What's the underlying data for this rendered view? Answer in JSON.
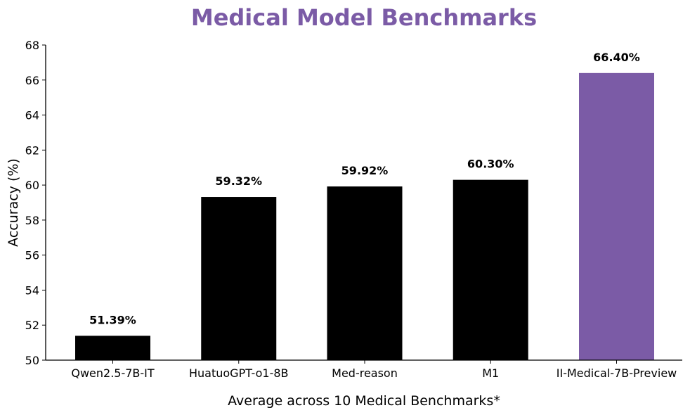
{
  "chart_data": {
    "type": "bar",
    "title": "Medical Model Benchmarks",
    "xlabel": "Average across 10 Medical Benchmarks*",
    "ylabel": "Accuracy (%)",
    "categories": [
      "Qwen2.5-7B-IT",
      "HuatuoGPT-o1-8B",
      "Med-reason",
      "M1",
      "II-Medical-7B-Preview"
    ],
    "values": [
      51.39,
      59.32,
      59.92,
      60.3,
      66.4
    ],
    "data_labels": [
      "51.39%",
      "59.32%",
      "59.92%",
      "60.30%",
      "66.40%"
    ],
    "ylim": [
      50,
      68
    ],
    "yticks": [
      "50",
      "52",
      "54",
      "56",
      "58",
      "60",
      "62",
      "64",
      "66",
      "68"
    ],
    "grid": false,
    "colors": {
      "default_bar": "#000000",
      "highlight_bar": "#7B5BA6",
      "title": "#7B5BA6"
    },
    "highlight_index": 4
  }
}
